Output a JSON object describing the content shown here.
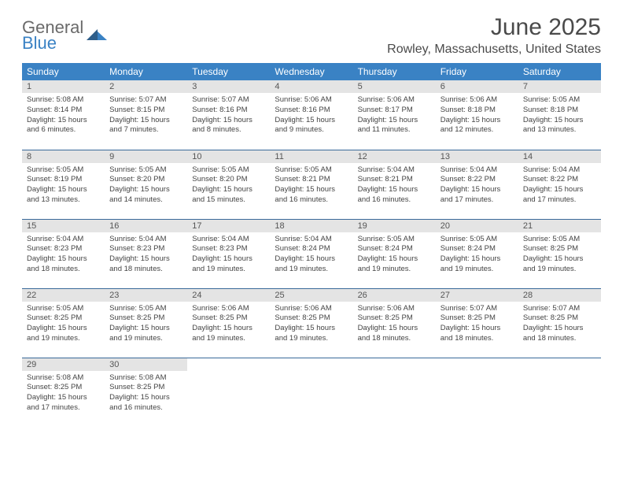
{
  "brand": {
    "word1": "General",
    "word2": "Blue"
  },
  "title": "June 2025",
  "location": "Rowley, Massachusetts, United States",
  "colors": {
    "header_bg": "#3a82c4",
    "row_divider": "#3a6a9a",
    "daynum_bg": "#e4e4e4"
  },
  "weekdays": [
    "Sunday",
    "Monday",
    "Tuesday",
    "Wednesday",
    "Thursday",
    "Friday",
    "Saturday"
  ],
  "days": [
    {
      "n": "1",
      "sr": "5:08 AM",
      "ss": "8:14 PM",
      "dl": "15 hours and 6 minutes."
    },
    {
      "n": "2",
      "sr": "5:07 AM",
      "ss": "8:15 PM",
      "dl": "15 hours and 7 minutes."
    },
    {
      "n": "3",
      "sr": "5:07 AM",
      "ss": "8:16 PM",
      "dl": "15 hours and 8 minutes."
    },
    {
      "n": "4",
      "sr": "5:06 AM",
      "ss": "8:16 PM",
      "dl": "15 hours and 9 minutes."
    },
    {
      "n": "5",
      "sr": "5:06 AM",
      "ss": "8:17 PM",
      "dl": "15 hours and 11 minutes."
    },
    {
      "n": "6",
      "sr": "5:06 AM",
      "ss": "8:18 PM",
      "dl": "15 hours and 12 minutes."
    },
    {
      "n": "7",
      "sr": "5:05 AM",
      "ss": "8:18 PM",
      "dl": "15 hours and 13 minutes."
    },
    {
      "n": "8",
      "sr": "5:05 AM",
      "ss": "8:19 PM",
      "dl": "15 hours and 13 minutes."
    },
    {
      "n": "9",
      "sr": "5:05 AM",
      "ss": "8:20 PM",
      "dl": "15 hours and 14 minutes."
    },
    {
      "n": "10",
      "sr": "5:05 AM",
      "ss": "8:20 PM",
      "dl": "15 hours and 15 minutes."
    },
    {
      "n": "11",
      "sr": "5:05 AM",
      "ss": "8:21 PM",
      "dl": "15 hours and 16 minutes."
    },
    {
      "n": "12",
      "sr": "5:04 AM",
      "ss": "8:21 PM",
      "dl": "15 hours and 16 minutes."
    },
    {
      "n": "13",
      "sr": "5:04 AM",
      "ss": "8:22 PM",
      "dl": "15 hours and 17 minutes."
    },
    {
      "n": "14",
      "sr": "5:04 AM",
      "ss": "8:22 PM",
      "dl": "15 hours and 17 minutes."
    },
    {
      "n": "15",
      "sr": "5:04 AM",
      "ss": "8:23 PM",
      "dl": "15 hours and 18 minutes."
    },
    {
      "n": "16",
      "sr": "5:04 AM",
      "ss": "8:23 PM",
      "dl": "15 hours and 18 minutes."
    },
    {
      "n": "17",
      "sr": "5:04 AM",
      "ss": "8:23 PM",
      "dl": "15 hours and 19 minutes."
    },
    {
      "n": "18",
      "sr": "5:04 AM",
      "ss": "8:24 PM",
      "dl": "15 hours and 19 minutes."
    },
    {
      "n": "19",
      "sr": "5:05 AM",
      "ss": "8:24 PM",
      "dl": "15 hours and 19 minutes."
    },
    {
      "n": "20",
      "sr": "5:05 AM",
      "ss": "8:24 PM",
      "dl": "15 hours and 19 minutes."
    },
    {
      "n": "21",
      "sr": "5:05 AM",
      "ss": "8:25 PM",
      "dl": "15 hours and 19 minutes."
    },
    {
      "n": "22",
      "sr": "5:05 AM",
      "ss": "8:25 PM",
      "dl": "15 hours and 19 minutes."
    },
    {
      "n": "23",
      "sr": "5:05 AM",
      "ss": "8:25 PM",
      "dl": "15 hours and 19 minutes."
    },
    {
      "n": "24",
      "sr": "5:06 AM",
      "ss": "8:25 PM",
      "dl": "15 hours and 19 minutes."
    },
    {
      "n": "25",
      "sr": "5:06 AM",
      "ss": "8:25 PM",
      "dl": "15 hours and 19 minutes."
    },
    {
      "n": "26",
      "sr": "5:06 AM",
      "ss": "8:25 PM",
      "dl": "15 hours and 18 minutes."
    },
    {
      "n": "27",
      "sr": "5:07 AM",
      "ss": "8:25 PM",
      "dl": "15 hours and 18 minutes."
    },
    {
      "n": "28",
      "sr": "5:07 AM",
      "ss": "8:25 PM",
      "dl": "15 hours and 18 minutes."
    },
    {
      "n": "29",
      "sr": "5:08 AM",
      "ss": "8:25 PM",
      "dl": "15 hours and 17 minutes."
    },
    {
      "n": "30",
      "sr": "5:08 AM",
      "ss": "8:25 PM",
      "dl": "15 hours and 16 minutes."
    }
  ],
  "labels": {
    "sunrise": "Sunrise:",
    "sunset": "Sunset:",
    "daylight": "Daylight:"
  }
}
